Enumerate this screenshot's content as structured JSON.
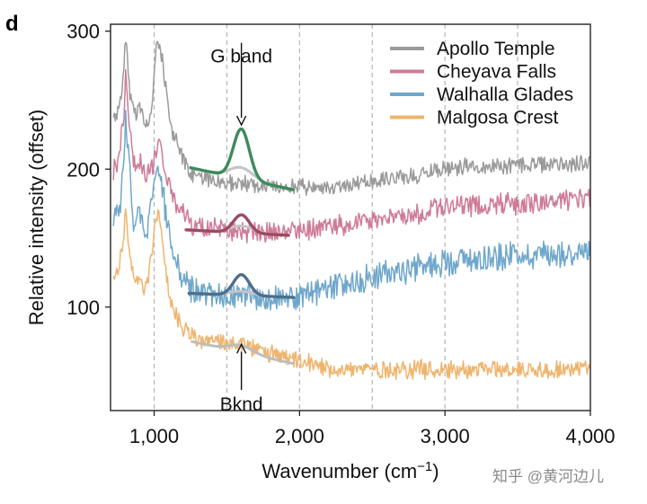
{
  "panel_label": "d",
  "watermark": "知乎 @黄河边儿",
  "chart_data": {
    "type": "line",
    "title": "",
    "xlabel": "Wavenumber (cm⁻¹)",
    "ylabel": "Relative intensity (offset)",
    "xlim": [
      700,
      4000
    ],
    "ylim": [
      25,
      305
    ],
    "xticks": [
      1000,
      2000,
      3000,
      4000
    ],
    "xtick_labels": [
      "1,000",
      "2,000",
      "3,000",
      "4,000"
    ],
    "yticks": [
      100,
      200,
      300
    ],
    "ytick_labels": [
      "100",
      "200",
      "300"
    ],
    "vlines": [
      1000,
      1500,
      2000,
      2500,
      3000,
      3500
    ],
    "series": [
      {
        "name": "Apollo Temple",
        "color": "#9a9a9a",
        "noise": 5.5,
        "x": [
          720,
          760,
          790,
          805,
          830,
          860,
          900,
          930,
          960,
          990,
          1010,
          1030,
          1060,
          1090,
          1130,
          1180,
          1250,
          1320,
          1400,
          1480,
          1550,
          1600,
          1650,
          1700,
          1800,
          1900,
          2000,
          2100,
          2200,
          2300,
          2400,
          2500,
          2600,
          2700,
          2800,
          2900,
          3000,
          3100,
          3200,
          3300,
          3400,
          3500,
          3600,
          3700,
          3800,
          3900,
          4000
        ],
        "y": [
          238,
          242,
          268,
          296,
          258,
          240,
          244,
          232,
          236,
          250,
          284,
          292,
          276,
          248,
          226,
          212,
          196,
          196,
          192,
          190,
          190,
          190,
          189,
          188,
          187,
          188,
          188,
          188,
          187,
          188,
          190,
          192,
          194,
          194,
          196,
          199,
          200,
          201,
          202,
          202,
          202,
          203,
          204,
          204,
          204,
          204,
          205
        ]
      },
      {
        "name": "Cheyava Falls",
        "color": "#cf7b98",
        "noise": 7,
        "x": [
          720,
          760,
          790,
          805,
          830,
          860,
          900,
          930,
          960,
          990,
          1010,
          1030,
          1060,
          1090,
          1130,
          1180,
          1250,
          1320,
          1400,
          1480,
          1550,
          1600,
          1650,
          1700,
          1800,
          1900,
          2000,
          2100,
          2200,
          2300,
          2400,
          2500,
          2600,
          2700,
          2800,
          2900,
          3000,
          3100,
          3200,
          3300,
          3400,
          3500,
          3600,
          3700,
          3800,
          3900,
          4000
        ],
        "y": [
          200,
          208,
          240,
          272,
          232,
          202,
          206,
          196,
          200,
          202,
          214,
          218,
          208,
          194,
          180,
          170,
          160,
          157,
          156,
          155,
          155,
          156,
          155,
          154,
          153,
          154,
          155,
          157,
          158,
          159,
          161,
          163,
          165,
          166,
          168,
          170,
          172,
          173,
          174,
          174,
          175,
          175,
          176,
          176,
          177,
          177,
          178
        ]
      },
      {
        "name": "Walhalla Glades",
        "color": "#6fa7cc",
        "noise": 9,
        "x": [
          720,
          760,
          790,
          805,
          830,
          860,
          900,
          930,
          960,
          990,
          1010,
          1030,
          1060,
          1090,
          1130,
          1180,
          1250,
          1320,
          1400,
          1480,
          1550,
          1600,
          1650,
          1700,
          1800,
          1900,
          2000,
          2100,
          2200,
          2300,
          2400,
          2500,
          2600,
          2700,
          2800,
          2900,
          3000,
          3100,
          3200,
          3300,
          3400,
          3500,
          3600,
          3700,
          3800,
          3900,
          4000
        ],
        "y": [
          162,
          168,
          205,
          240,
          198,
          162,
          166,
          155,
          160,
          180,
          200,
          202,
          182,
          162,
          140,
          124,
          112,
          110,
          108,
          108,
          110,
          112,
          110,
          108,
          106,
          106,
          108,
          110,
          113,
          116,
          119,
          122,
          124,
          126,
          128,
          131,
          133,
          134,
          135,
          136,
          137,
          138,
          138,
          139,
          139,
          140,
          140
        ]
      },
      {
        "name": "Malgosa Crest",
        "color": "#efb46c",
        "noise": 6,
        "x": [
          720,
          760,
          790,
          805,
          830,
          860,
          900,
          930,
          960,
          990,
          1010,
          1030,
          1060,
          1090,
          1130,
          1180,
          1250,
          1320,
          1400,
          1480,
          1550,
          1600,
          1650,
          1700,
          1800,
          1900,
          2000,
          2100,
          2200,
          2300,
          2400,
          2500,
          2600,
          2700,
          2800,
          2900,
          3000,
          3100,
          3200,
          3300,
          3400,
          3500,
          3600,
          3700,
          3800,
          3900,
          4000
        ],
        "y": [
          120,
          130,
          150,
          168,
          140,
          115,
          122,
          110,
          122,
          140,
          162,
          168,
          148,
          118,
          98,
          88,
          80,
          76,
          75,
          74,
          74,
          73,
          71,
          69,
          66,
          63,
          60,
          58,
          56,
          55,
          55,
          55,
          55,
          55,
          55,
          55,
          55,
          55,
          55,
          55,
          55,
          55,
          55,
          55,
          55,
          55,
          55
        ]
      }
    ],
    "fits": [
      {
        "series": "Apollo Temple",
        "x0": 1250,
        "x1": 1960,
        "baseline": [
          201,
          185
        ],
        "peak_height": 36,
        "bkg_bump": 8,
        "color": "#3d8a5c",
        "bkg_color": "#c4c4c4"
      },
      {
        "series": "Cheyava Falls",
        "x0": 1220,
        "x1": 1930,
        "baseline": [
          156,
          152
        ],
        "peak_height": 13,
        "bkg_bump": 5,
        "color": "#9c4a62",
        "bkg_color": "#c4c4c4"
      },
      {
        "series": "Walhalla Glades",
        "x0": 1240,
        "x1": 1960,
        "baseline": [
          110,
          107
        ],
        "peak_height": 15,
        "bkg_bump": 3,
        "color": "#4d6f8c",
        "bkg_color": "#c4c4c4"
      },
      {
        "series": "Malgosa Crest",
        "x0": 1260,
        "x1": 1960,
        "baseline": [
          75,
          59
        ],
        "peak_height": 0,
        "bkg_bump": 5,
        "color": null,
        "bkg_color": "#bdbdbd"
      }
    ],
    "annotations": [
      {
        "text": "G band",
        "x": 1600,
        "y": 272,
        "arrow_to_y": 232
      },
      {
        "text": "Bknd",
        "x": 1600,
        "y": 38,
        "arrow_to_y": 73
      }
    ],
    "legend_position": "top-right"
  }
}
